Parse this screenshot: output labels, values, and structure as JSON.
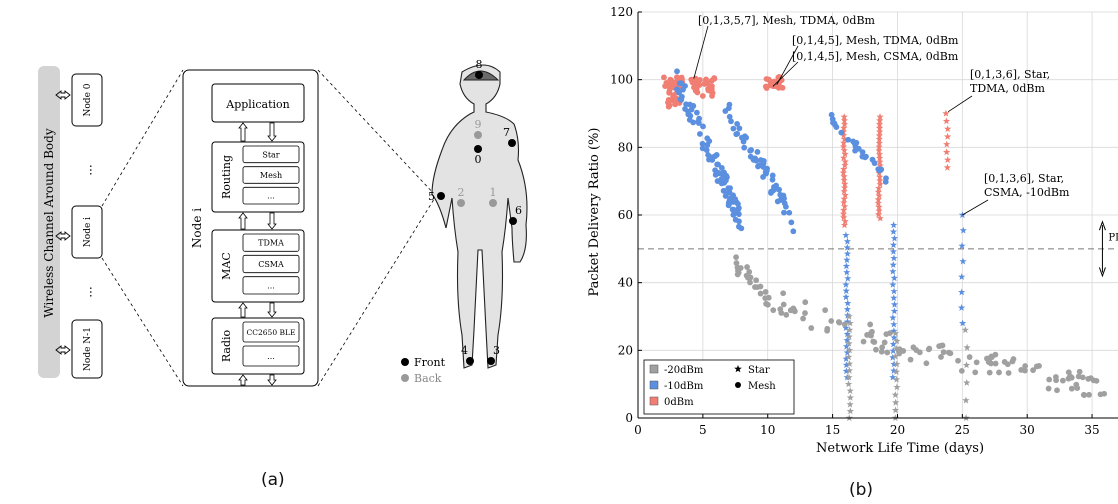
{
  "panel_a": {
    "caption": "(a)",
    "channel_label": "Wireless Channel Around Body",
    "nodes": [
      "Node 0",
      "Node i",
      "Node N-1"
    ],
    "ellipsis": "...",
    "node_title": "Node i",
    "app_label": "Application",
    "layers": [
      {
        "name": "Routing",
        "options": [
          "Star",
          "Mesh",
          "..."
        ]
      },
      {
        "name": "MAC",
        "options": [
          "TDMA",
          "CSMA",
          "..."
        ]
      },
      {
        "name": "Radio",
        "options": [
          "CC2650 BLE",
          "..."
        ]
      }
    ],
    "body_points": [
      {
        "id": "8",
        "side": "front"
      },
      {
        "id": "9",
        "side": "back"
      },
      {
        "id": "0",
        "side": "front"
      },
      {
        "id": "7",
        "side": "front"
      },
      {
        "id": "5",
        "side": "front"
      },
      {
        "id": "2",
        "side": "back"
      },
      {
        "id": "1",
        "side": "back"
      },
      {
        "id": "6",
        "side": "front"
      },
      {
        "id": "4",
        "side": "front"
      },
      {
        "id": "3",
        "side": "front"
      }
    ],
    "legend": {
      "front": "Front",
      "back": "Back"
    },
    "colors": {
      "front": "#000000",
      "back": "#999999",
      "body": "#e3e3e3",
      "channel": "#d3d3d3"
    }
  },
  "panel_b": {
    "caption": "(b)",
    "threshold_label": "PDRmin",
    "annotations": [
      {
        "text": "[0,1,3,5,7], Mesh, TDMA, 0dBm",
        "x": 4.3,
        "y": 100.3
      },
      {
        "text": "[0,1,4,5], Mesh, TDMA, 0dBm",
        "x": 10.7,
        "y": 98.5
      },
      {
        "text": "[0,1,4,5], Mesh, CSMA, 0dBm",
        "x": 10.4,
        "y": 98.0
      },
      {
        "text": "[0,1,3,6], Star,\nTDMA, 0dBm",
        "x": 23.9,
        "y": 90.5
      },
      {
        "text": "[0,1,3,6], Star,\nCSMA, -10dBm",
        "x": 25.0,
        "y": 60.0
      }
    ],
    "legend": {
      "powers": [
        {
          "label": "-20dBm",
          "color": "#a0a0a0"
        },
        {
          "label": "-10dBm",
          "color": "#5b8fe0"
        },
        {
          "label": "0dBm",
          "color": "#f07e72"
        }
      ],
      "topologies": [
        {
          "label": "Star",
          "marker": "star"
        },
        {
          "label": "Mesh",
          "marker": "circle"
        }
      ]
    }
  },
  "chart_data": {
    "type": "scatter",
    "title": "",
    "xlabel": "Network Life Time (days)",
    "ylabel": "Packet Delivery Ratio (%)",
    "xlim": [
      0,
      37
    ],
    "ylim": [
      0,
      120
    ],
    "xticks": [
      0,
      5,
      10,
      15,
      20,
      25,
      30,
      35
    ],
    "yticks": [
      0,
      20,
      40,
      60,
      80,
      100,
      120
    ],
    "grid": true,
    "threshold_y": 50,
    "legend_position": "lower-left",
    "series": [
      {
        "power": "0dBm",
        "topology": "Mesh",
        "clusters": [
          {
            "x": [
              2.0,
              3.5
            ],
            "y": [
              97,
              101
            ],
            "n": 34
          },
          {
            "x": [
              2.3,
              3.2
            ],
            "y": [
              92,
              97
            ],
            "n": 22
          },
          {
            "x": [
              4.1,
              5.9
            ],
            "y": [
              95,
              100.5
            ],
            "n": 30
          },
          {
            "x": [
              9.8,
              11.2
            ],
            "y": [
              97.5,
              101
            ],
            "n": 22
          }
        ]
      },
      {
        "power": "0dBm",
        "topology": "Star",
        "columns": [
          {
            "x": 15.9,
            "y": [
              57,
              89
            ],
            "n": 30
          },
          {
            "x": 18.6,
            "y": [
              59,
              89
            ],
            "n": 28
          },
          {
            "x": 23.8,
            "y": [
              74,
              90
            ],
            "n": 8
          }
        ]
      },
      {
        "power": "-10dBm",
        "topology": "Mesh",
        "trends": [
          {
            "x": [
              3.0,
              8.0
            ],
            "y": [
              100,
              58
            ],
            "n": 90
          },
          {
            "x": [
              6.5,
              12.0
            ],
            "y": [
              94,
              58
            ],
            "n": 55
          },
          {
            "x": [
              14.8,
              19.2
            ],
            "y": [
              89,
              70
            ],
            "n": 26
          }
        ]
      },
      {
        "power": "-10dBm",
        "topology": "Star",
        "columns": [
          {
            "x": 16.1,
            "y": [
              12,
              54
            ],
            "n": 24
          },
          {
            "x": 19.7,
            "y": [
              12,
              57
            ],
            "n": 24
          },
          {
            "x": 25.0,
            "y": [
              28,
              60
            ],
            "n": 8
          }
        ]
      },
      {
        "power": "-20dBm",
        "topology": "Mesh",
        "trends": [
          {
            "x": [
              7.5,
              36.5
            ],
            "y": [
              50,
              9
            ],
            "n": 130
          }
        ]
      },
      {
        "power": "-20dBm",
        "topology": "Star",
        "columns": [
          {
            "x": 16.3,
            "y": [
              0,
              30
            ],
            "n": 16
          },
          {
            "x": 19.9,
            "y": [
              0,
              25
            ],
            "n": 12
          },
          {
            "x": 25.3,
            "y": [
              0,
              26
            ],
            "n": 6
          }
        ]
      }
    ]
  }
}
